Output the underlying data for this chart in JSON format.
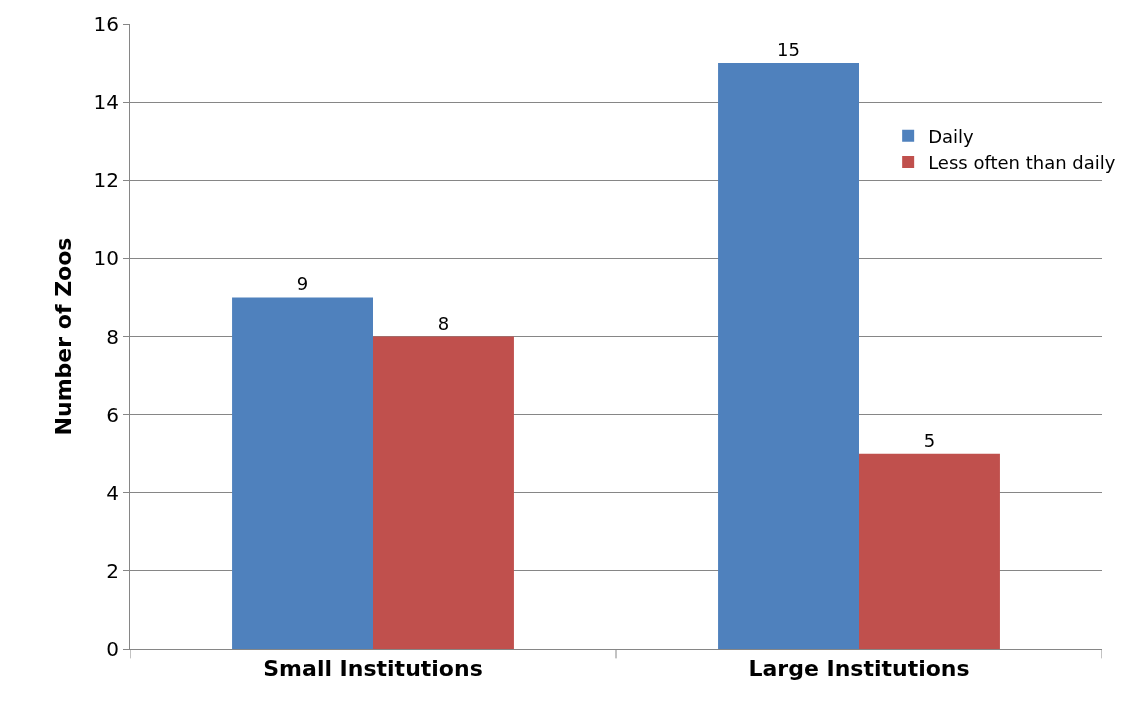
{
  "chart_data": {
    "type": "bar",
    "ylabel": "Number of Zoos",
    "categories": [
      "Small Institutions",
      "Large Institutions"
    ],
    "series": [
      {
        "name": "Daily",
        "color": "#4f81bd",
        "values": [
          9,
          15
        ]
      },
      {
        "name": "Less often than daily",
        "color": "#c0504d",
        "values": [
          8,
          5
        ]
      }
    ],
    "ylim": [
      0,
      16
    ],
    "yticks": [
      0,
      2,
      4,
      6,
      8,
      10,
      12,
      14,
      16
    ],
    "grid": "y",
    "legend": "right",
    "data_labels": true
  }
}
